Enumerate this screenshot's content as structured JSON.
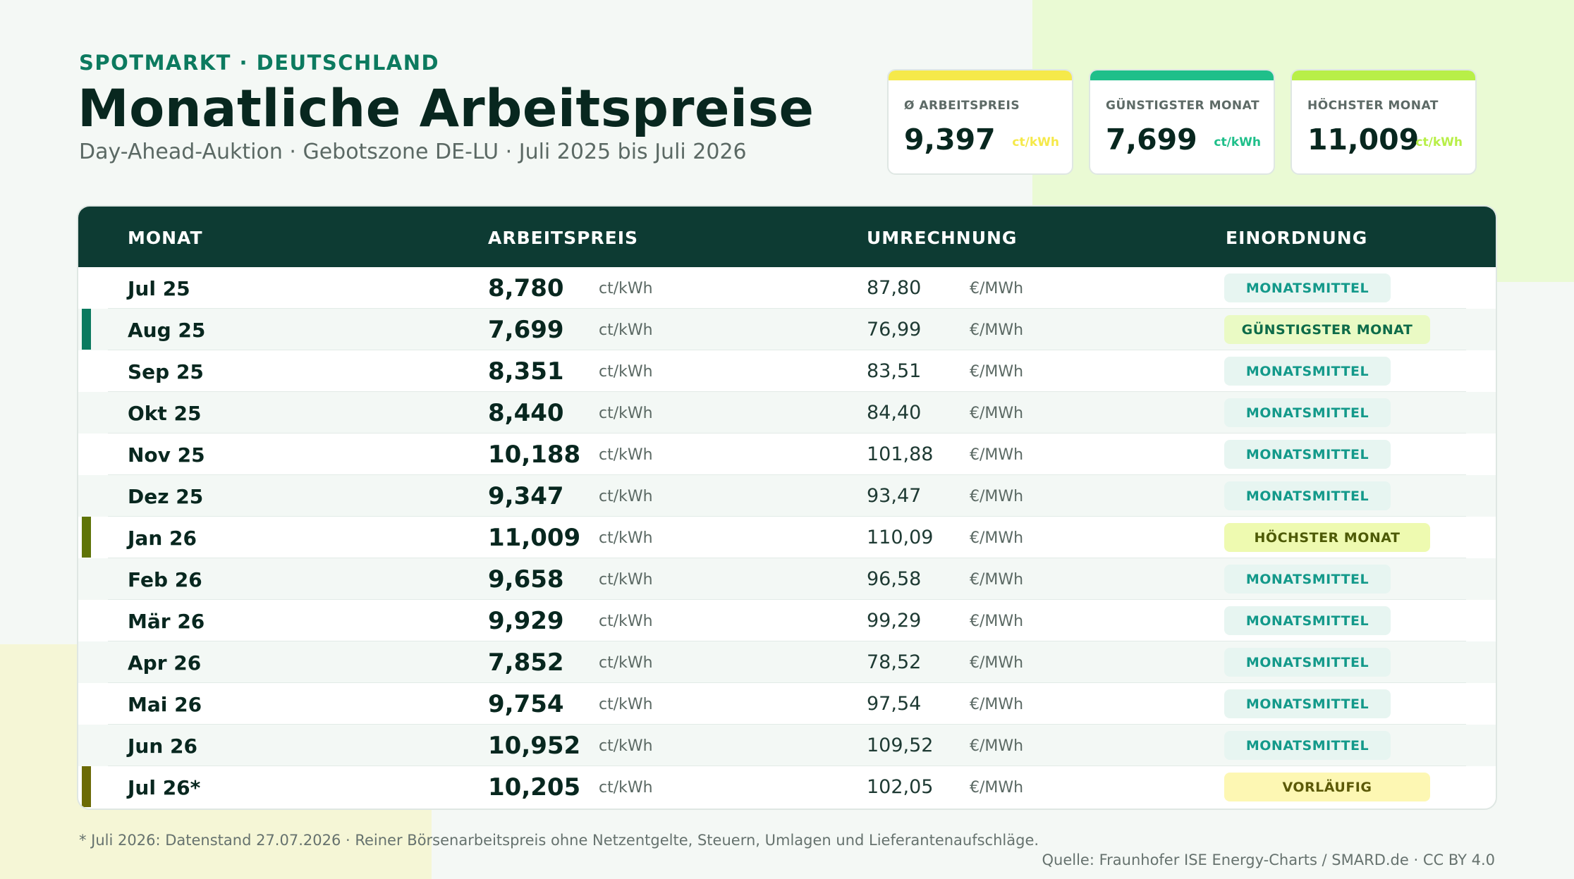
{
  "header": {
    "eyebrow": "SPOTMARKT · DEUTSCHLAND",
    "title": "Monatliche Arbeitspreise",
    "subtitle": "Day-Ahead-Auktion · Gebotszone DE-LU · Juli 2025 bis Juli 2026"
  },
  "cards": [
    {
      "label": "Ø ARBEITSPREIS",
      "value": "9,397",
      "unit": "ct/kWh",
      "color": "#f5e94a"
    },
    {
      "label": "GÜNSTIGSTER MONAT",
      "value": "7,699",
      "unit": "ct/kWh",
      "color": "#1fbf8a"
    },
    {
      "label": "HÖCHSTER MONAT",
      "value": "11,009",
      "unit": "ct/kWh",
      "color": "#b8ef48"
    }
  ],
  "table": {
    "headers": [
      "MONAT",
      "ARBEITSPREIS",
      "UMRECHNUNG",
      "EINORDNUNG"
    ],
    "rows": [
      {
        "month": "Jul 25",
        "price": "8,780",
        "price_unit": "ct/kWh",
        "conv": "87,80",
        "conv_unit": "€/MWh",
        "badge": "MONATSMITTEL",
        "type": "mean"
      },
      {
        "month": "Aug 25",
        "price": "7,699",
        "price_unit": "ct/kWh",
        "conv": "76,99",
        "conv_unit": "€/MWh",
        "badge": "GÜNSTIGSTER MONAT",
        "type": "low"
      },
      {
        "month": "Sep 25",
        "price": "8,351",
        "price_unit": "ct/kWh",
        "conv": "83,51",
        "conv_unit": "€/MWh",
        "badge": "MONATSMITTEL",
        "type": "mean"
      },
      {
        "month": "Okt 25",
        "price": "8,440",
        "price_unit": "ct/kWh",
        "conv": "84,40",
        "conv_unit": "€/MWh",
        "badge": "MONATSMITTEL",
        "type": "mean"
      },
      {
        "month": "Nov 25",
        "price": "10,188",
        "price_unit": "ct/kWh",
        "conv": "101,88",
        "conv_unit": "€/MWh",
        "badge": "MONATSMITTEL",
        "type": "mean"
      },
      {
        "month": "Dez 25",
        "price": "9,347",
        "price_unit": "ct/kWh",
        "conv": "93,47",
        "conv_unit": "€/MWh",
        "badge": "MONATSMITTEL",
        "type": "mean"
      },
      {
        "month": "Jan 26",
        "price": "11,009",
        "price_unit": "ct/kWh",
        "conv": "110,09",
        "conv_unit": "€/MWh",
        "badge": "HÖCHSTER MONAT",
        "type": "high"
      },
      {
        "month": "Feb 26",
        "price": "9,658",
        "price_unit": "ct/kWh",
        "conv": "96,58",
        "conv_unit": "€/MWh",
        "badge": "MONATSMITTEL",
        "type": "mean"
      },
      {
        "month": "Mär 26",
        "price": "9,929",
        "price_unit": "ct/kWh",
        "conv": "99,29",
        "conv_unit": "€/MWh",
        "badge": "MONATSMITTEL",
        "type": "mean"
      },
      {
        "month": "Apr 26",
        "price": "7,852",
        "price_unit": "ct/kWh",
        "conv": "78,52",
        "conv_unit": "€/MWh",
        "badge": "MONATSMITTEL",
        "type": "mean"
      },
      {
        "month": "Mai 26",
        "price": "9,754",
        "price_unit": "ct/kWh",
        "conv": "97,54",
        "conv_unit": "€/MWh",
        "badge": "MONATSMITTEL",
        "type": "mean"
      },
      {
        "month": "Jun 26",
        "price": "10,952",
        "price_unit": "ct/kWh",
        "conv": "109,52",
        "conv_unit": "€/MWh",
        "badge": "MONATSMITTEL",
        "type": "mean"
      },
      {
        "month": "Jul 26*",
        "price": "10,205",
        "price_unit": "ct/kWh",
        "conv": "102,05",
        "conv_unit": "€/MWh",
        "badge": "VORLÄUFIG",
        "type": "prelim"
      }
    ]
  },
  "footer": {
    "note": "* Juli 2026: Datenstand 27.07.2026 · Reiner Börsenarbeitspreis ohne Netzentgelte, Steuern, Umlagen und Lieferantenaufschläge.",
    "source": "Quelle: Fraunhofer ISE Energy-Charts / SMARD.de · CC BY 4.0"
  },
  "badge_styles": {
    "mean": {
      "bg": "#e7f5f1",
      "fg": "#13998a",
      "marker": ""
    },
    "low": {
      "bg": "#eafac4",
      "fg": "#0d6b49",
      "marker": "#0b7a5f"
    },
    "high": {
      "bg": "#eefab0",
      "fg": "#4d5a06",
      "marker": "#5f7407"
    },
    "prelim": {
      "bg": "#fdf7b3",
      "fg": "#5c5a08",
      "marker": "#6b6a06"
    }
  }
}
